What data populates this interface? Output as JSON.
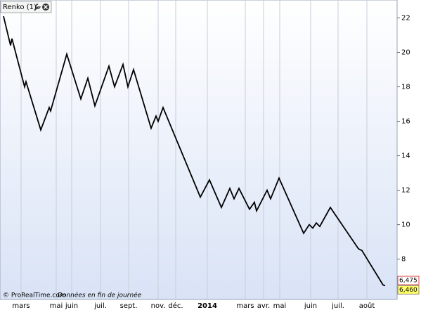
{
  "chart_data": {
    "type": "line",
    "title": "Renko (1)",
    "source": "© ProRealTime.com",
    "note": "Données en fin de journée",
    "x": [
      5,
      15,
      17,
      35,
      37,
      58,
      70,
      72,
      95,
      115,
      125,
      135,
      155,
      163,
      175,
      182,
      190,
      215,
      222,
      225,
      232,
      285,
      298,
      315,
      327,
      333,
      340,
      355,
      362,
      365,
      380,
      385,
      397,
      432,
      440,
      445,
      450,
      455,
      470,
      510,
      515,
      545,
      548
    ],
    "series": [
      {
        "name": "Renko",
        "color": "#000000",
        "values": [
          22.1,
          20.4,
          20.8,
          18.0,
          18.3,
          15.5,
          16.8,
          16.6,
          19.9,
          17.3,
          18.5,
          16.9,
          19.2,
          18.0,
          19.3,
          18.0,
          19.0,
          15.6,
          16.3,
          16.0,
          16.8,
          11.6,
          12.6,
          11.0,
          12.1,
          11.5,
          12.1,
          10.9,
          11.3,
          10.8,
          12.0,
          11.5,
          12.7,
          9.5,
          10.0,
          9.8,
          10.1,
          9.9,
          11.0,
          8.6,
          8.5,
          6.5,
          6.46
        ]
      }
    ],
    "xlim": [
      0,
      565
    ],
    "xticks": [
      {
        "value": 30,
        "label": "mars"
      },
      {
        "value": 80,
        "label": "mai"
      },
      {
        "value": 102,
        "label": "juin"
      },
      {
        "value": 143,
        "label": "juil."
      },
      {
        "value": 183,
        "label": "sept."
      },
      {
        "value": 225,
        "label": "nov."
      },
      {
        "value": 250,
        "label": "déc."
      },
      {
        "value": 295,
        "label": "2014"
      },
      {
        "value": 349,
        "label": "mars"
      },
      {
        "value": 375,
        "label": "avr."
      },
      {
        "value": 398,
        "label": "mai"
      },
      {
        "value": 442,
        "label": "juin"
      },
      {
        "value": 481,
        "label": "juil."
      },
      {
        "value": 522,
        "label": "août"
      }
    ],
    "ylim": [
      5.7,
      23
    ],
    "yticks": [
      8,
      10,
      12,
      14,
      16,
      18,
      20,
      22
    ],
    "price_tags": [
      {
        "value": 6.475,
        "label": "6,475"
      },
      {
        "value": 6.46,
        "label": "6,460"
      }
    ],
    "grid": true
  }
}
